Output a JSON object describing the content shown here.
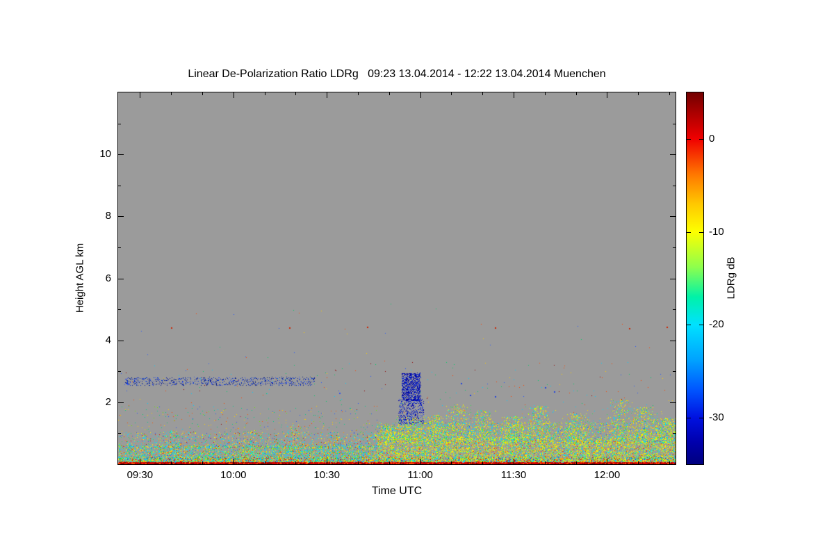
{
  "title": "Linear De-Polarization Ratio LDRg   09:23 13.04.2014 - 12:22 13.04.2014 Muenchen",
  "chart_data": {
    "type": "heatmap",
    "title": "Linear De-Polarization Ratio LDRg   09:23 13.04.2014 - 12:22 13.04.2014 Muenchen",
    "site": "Muenchen",
    "date": "13.04.2014",
    "xlabel": "Time UTC",
    "ylabel": "Height AGL km",
    "x_range": [
      "09:23",
      "12:22"
    ],
    "y_range_km": [
      0,
      12
    ],
    "x_ticks": [
      {
        "time": "09:30",
        "label": "09:30"
      },
      {
        "time": "10:00",
        "label": "10:00"
      },
      {
        "time": "10:30",
        "label": "10:30"
      },
      {
        "time": "11:00",
        "label": "11:00"
      },
      {
        "time": "11:30",
        "label": "11:30"
      },
      {
        "time": "12:00",
        "label": "12:00"
      }
    ],
    "x_minor_step_min": 10,
    "y_ticks": [
      {
        "km": 2,
        "label": "2"
      },
      {
        "km": 4,
        "label": "4"
      },
      {
        "km": 6,
        "label": "6"
      },
      {
        "km": 8,
        "label": "8"
      },
      {
        "km": 10,
        "label": "10"
      }
    ],
    "y_minor_step_km": 1,
    "background_color": "#9b9b9b",
    "colorbar": {
      "label": "LDRg dB",
      "value_range": [
        5,
        -35
      ],
      "ticks": [
        {
          "value": 0,
          "label": "0"
        },
        {
          "value": -10,
          "label": "-10"
        },
        {
          "value": -20,
          "label": "-20"
        },
        {
          "value": -30,
          "label": "-30"
        }
      ],
      "stops": [
        {
          "pos": 0.0,
          "color": "#720000"
        },
        {
          "pos": 0.06,
          "color": "#b00000"
        },
        {
          "pos": 0.125,
          "color": "#f00000"
        },
        {
          "pos": 0.22,
          "color": "#ff7700"
        },
        {
          "pos": 0.3,
          "color": "#ffc800"
        },
        {
          "pos": 0.375,
          "color": "#fdff00"
        },
        {
          "pos": 0.47,
          "color": "#8dff4d"
        },
        {
          "pos": 0.55,
          "color": "#00f2a8"
        },
        {
          "pos": 0.625,
          "color": "#00e1ff"
        },
        {
          "pos": 0.72,
          "color": "#00a2ff"
        },
        {
          "pos": 0.8,
          "color": "#0055ff"
        },
        {
          "pos": 0.875,
          "color": "#0011e0"
        },
        {
          "pos": 0.94,
          "color": "#0000ad"
        },
        {
          "pos": 1.0,
          "color": "#00007f"
        }
      ]
    },
    "layers": [
      {
        "name": "sparse-specks",
        "type": "band",
        "t": [
          "09:23",
          "12:22"
        ],
        "h": [
          1.1,
          3.3
        ],
        "count": 260,
        "size": 1,
        "colors": [
          [
            "#ff4400",
            2
          ],
          [
            "#00cc66",
            2
          ],
          [
            "#00ccff",
            2
          ],
          [
            "#ffcc00",
            1
          ],
          [
            "#2255ff",
            1
          ],
          [
            "#8f0000",
            1
          ]
        ]
      },
      {
        "name": "sparse-specks-high",
        "type": "band",
        "t": [
          "09:23",
          "12:22"
        ],
        "h": [
          3.3,
          5.2
        ],
        "count": 30,
        "size": 1,
        "colors": [
          [
            "#ff4400",
            2
          ],
          [
            "#00cc66",
            1
          ],
          [
            "#2255ff",
            1
          ],
          [
            "#ffcc00",
            1
          ]
        ]
      },
      {
        "name": "cloud-base-line",
        "type": "band",
        "t": [
          "09:25",
          "10:26"
        ],
        "h": [
          2.55,
          2.82
        ],
        "count": 700,
        "size": 1,
        "colors": [
          [
            "#0033cc",
            4
          ],
          [
            "#0a1a9e",
            3
          ],
          [
            "#3355ff",
            2
          ],
          [
            "#00187f",
            2
          ]
        ]
      },
      {
        "name": "bl1-upper-sparse",
        "type": "band",
        "t": [
          "09:23",
          "10:46"
        ],
        "h": [
          1.0,
          1.9
        ],
        "count": 240,
        "size": 1,
        "colors": [
          [
            "#00cc88",
            2
          ],
          [
            "#ffcc00",
            2
          ],
          [
            "#ff5500",
            1
          ],
          [
            "#2255ff",
            1
          ],
          [
            "#66ee00",
            1
          ]
        ]
      },
      {
        "name": "bl1-mid",
        "type": "band",
        "t": [
          "09:23",
          "10:46"
        ],
        "h": [
          0.55,
          1.05
        ],
        "count": 1300,
        "size": 1,
        "gamma": 1.5,
        "colors": [
          [
            "#00e1ff",
            4
          ],
          [
            "#33dd55",
            2
          ],
          [
            "#ffee00",
            2
          ],
          [
            "#ff9900",
            1
          ],
          [
            "#2255ff",
            1
          ],
          [
            "#cc1100",
            1
          ]
        ]
      },
      {
        "name": "bl1-low",
        "type": "band",
        "t": [
          "09:23",
          "10:46"
        ],
        "h": [
          0.08,
          0.62
        ],
        "count": 4600,
        "size": 1,
        "gamma": 1.25,
        "colors": [
          [
            "#00e1ff",
            5
          ],
          [
            "#00f0a0",
            2
          ],
          [
            "#66ee00",
            2
          ],
          [
            "#ffee00",
            3
          ],
          [
            "#ff9900",
            1
          ],
          [
            "#ff3300",
            1
          ],
          [
            "#0077ff",
            1
          ]
        ]
      },
      {
        "name": "bl1-spike-clusters",
        "type": "clusters",
        "h0": 0.35,
        "sigma_min": 2.2,
        "count": 140,
        "size": 1,
        "gamma": 1.5,
        "items": [
          {
            "t": "09:40",
            "htop": 1.1
          },
          {
            "t": "10:05",
            "htop": 1.1
          },
          {
            "t": "10:20",
            "htop": 1.3
          },
          {
            "t": "10:33",
            "htop": 1.0
          }
        ],
        "colors": [
          [
            "#00e1ff",
            3
          ],
          [
            "#ffee00",
            3
          ],
          [
            "#ff9900",
            2
          ],
          [
            "#33dd55",
            2
          ],
          [
            "#ff3300",
            1
          ]
        ]
      },
      {
        "name": "bl2-mid",
        "type": "band",
        "t": [
          "10:46",
          "12:22"
        ],
        "h": [
          0.7,
          1.35
        ],
        "count": 2800,
        "size": 1,
        "gamma": 1.35,
        "colors": [
          [
            "#ffee00",
            4
          ],
          [
            "#00e1ff",
            3
          ],
          [
            "#66ee00",
            2
          ],
          [
            "#ff9900",
            1
          ],
          [
            "#2255ff",
            1
          ]
        ]
      },
      {
        "name": "bl2-low",
        "type": "band",
        "t": [
          "10:46",
          "12:22"
        ],
        "h": [
          0.08,
          0.78
        ],
        "count": 8200,
        "size": 1,
        "gamma": 1.2,
        "colors": [
          [
            "#ffee00",
            5
          ],
          [
            "#d4ff00",
            3
          ],
          [
            "#00e1ff",
            3
          ],
          [
            "#33dd55",
            2
          ],
          [
            "#ff9900",
            1
          ],
          [
            "#ff3300",
            1
          ]
        ]
      },
      {
        "name": "plume-clusters",
        "type": "clusters",
        "h0": 0.8,
        "sigma_min": 3,
        "count": 430,
        "size": 1,
        "gamma": 1.5,
        "items": [
          {
            "t": "10:50",
            "htop": 1.25
          },
          {
            "t": "10:57",
            "htop": 1.55
          },
          {
            "t": "11:05",
            "htop": 1.6
          },
          {
            "t": "11:12",
            "htop": 1.95
          },
          {
            "t": "11:20",
            "htop": 1.75
          },
          {
            "t": "11:30",
            "htop": 1.55
          },
          {
            "t": "11:38",
            "htop": 1.9
          },
          {
            "t": "11:50",
            "htop": 1.65
          },
          {
            "t": "12:04",
            "htop": 2.1
          },
          {
            "t": "12:12",
            "htop": 1.85
          },
          {
            "t": "12:19",
            "htop": 1.5
          }
        ],
        "colors": [
          [
            "#ffee00",
            4
          ],
          [
            "#d4ff00",
            2
          ],
          [
            "#00e1ff",
            3
          ],
          [
            "#33dd55",
            2
          ],
          [
            "#ff9900",
            1
          ]
        ]
      },
      {
        "name": "snow-blob-lower",
        "type": "band",
        "t": [
          "10:53",
          "11:01"
        ],
        "h": [
          1.3,
          2.12
        ],
        "count": 430,
        "size": 1,
        "colors": [
          [
            "#0000a8",
            4
          ],
          [
            "#0022cc",
            3
          ],
          [
            "#2244ee",
            2
          ]
        ]
      },
      {
        "name": "snow-blob-upper",
        "type": "band",
        "t": [
          "10:54",
          "11:00"
        ],
        "h": [
          2.05,
          2.95
        ],
        "count": 900,
        "size": 1,
        "colors": [
          [
            "#0000a0",
            5
          ],
          [
            "#0022cc",
            3
          ],
          [
            "#1133ee",
            1
          ]
        ]
      },
      {
        "name": "ground-mix",
        "type": "band",
        "t": [
          "09:23",
          "12:22"
        ],
        "h": [
          0.05,
          0.24
        ],
        "count": 3600,
        "size": 1,
        "colors": [
          [
            "#00d8ff",
            3
          ],
          [
            "#2fe32f",
            2
          ],
          [
            "#ffee00",
            3
          ],
          [
            "#ff8800",
            2
          ],
          [
            "#e00000",
            2
          ],
          [
            "#0050ff",
            1
          ],
          [
            "#00ffb0",
            1
          ]
        ]
      },
      {
        "name": "ground-return-line",
        "type": "band",
        "t": [
          "09:23",
          "12:22"
        ],
        "h": [
          0.0,
          0.07
        ],
        "count": 5200,
        "size": 2,
        "colors": [
          [
            "#d40000",
            5
          ],
          [
            "#8f0000",
            3
          ],
          [
            "#ff4400",
            2
          ]
        ]
      },
      {
        "name": "isolated-red-dots",
        "type": "dots",
        "size": 2,
        "points": [
          {
            "t": "09:40",
            "km": 4.42,
            "color": "#cc2200"
          },
          {
            "t": "10:18",
            "km": 4.42,
            "color": "#cc2200"
          },
          {
            "t": "10:43",
            "km": 4.45,
            "color": "#cc2200"
          },
          {
            "t": "11:24",
            "km": 4.42,
            "color": "#cc2200"
          },
          {
            "t": "12:07",
            "km": 4.4,
            "color": "#cc2200"
          },
          {
            "t": "12:19",
            "km": 4.45,
            "color": "#cc2200"
          }
        ]
      },
      {
        "name": "isolated-blue-dots",
        "type": "dots",
        "size": 2,
        "points": [
          {
            "t": "11:13",
            "km": 2.62,
            "color": "#2244dd"
          },
          {
            "t": "11:16",
            "km": 2.25,
            "color": "#2244dd"
          },
          {
            "t": "11:24",
            "km": 2.2,
            "color": "#2244dd"
          },
          {
            "t": "11:40",
            "km": 2.5,
            "color": "#2244dd"
          },
          {
            "t": "11:43",
            "km": 2.35,
            "color": "#2244dd"
          },
          {
            "t": "10:34",
            "km": 2.3,
            "color": "#3355ee"
          }
        ]
      }
    ]
  }
}
